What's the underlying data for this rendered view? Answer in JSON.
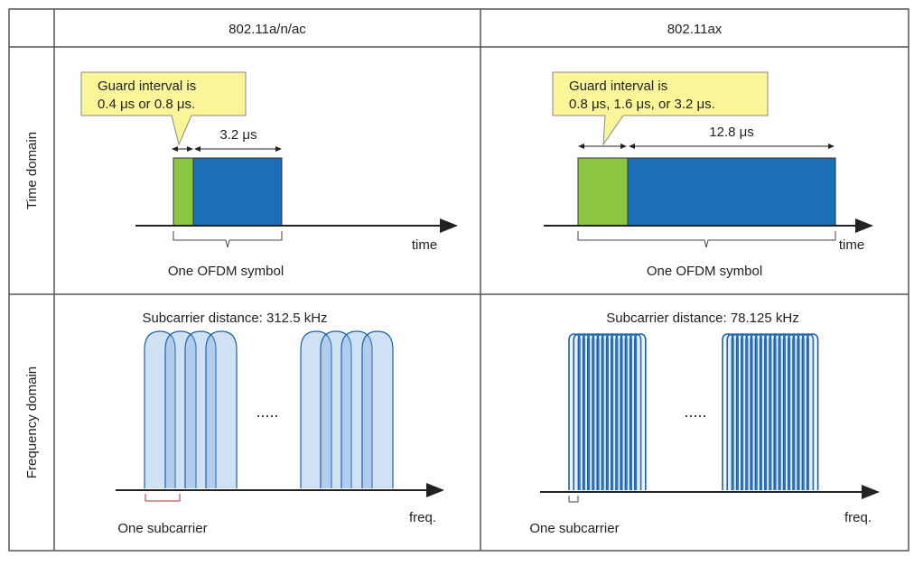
{
  "header": {
    "columns": [
      "802.11a/n/ac",
      "802.11ax"
    ]
  },
  "rows": [
    "Time domain",
    "Frequency domain"
  ],
  "time_domain": {
    "left": {
      "callout": [
        "Guard interval is",
        "0.4 μs or 0.8 μs."
      ],
      "duration": "3.2 μs",
      "axis": "time",
      "symbol": "One OFDM symbol"
    },
    "right": {
      "callout": [
        "Guard interval is",
        "0.8 μs, 1.6 μs, or 3.2 μs."
      ],
      "duration": "12.8 μs",
      "axis": "time",
      "symbol": "One OFDM symbol"
    }
  },
  "frequency_domain": {
    "left": {
      "spacing": "Subcarrier distance: 312.5 kHz",
      "ellipsis": ".....",
      "axis": "freq.",
      "subcarrier": "One subcarrier"
    },
    "right": {
      "spacing": "Subcarrier distance: 78.125 kHz",
      "ellipsis": ".....",
      "axis": "freq.",
      "subcarrier": "One subcarrier"
    }
  }
}
